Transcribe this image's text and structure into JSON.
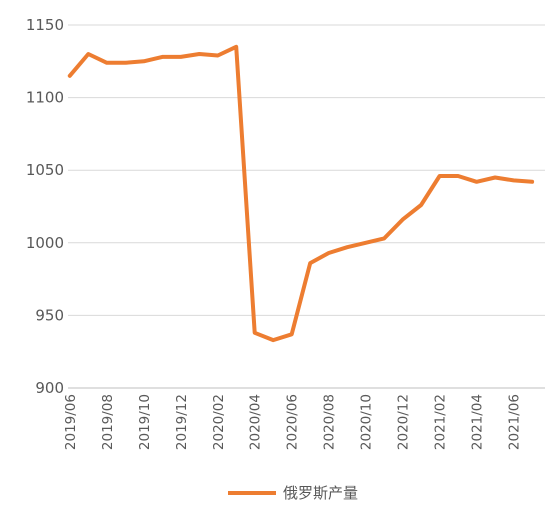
{
  "chart_data": {
    "type": "line",
    "title": "",
    "xlabel": "",
    "ylabel": "",
    "ylim": [
      900,
      1150
    ],
    "yticks": [
      900,
      950,
      1000,
      1050,
      1100,
      1150
    ],
    "grid": "horizontal",
    "legend_position": "bottom",
    "xticklabels": [
      "2019/06",
      "2019/08",
      "2019/10",
      "2019/12",
      "2020/02",
      "2020/04",
      "2020/06",
      "2020/08",
      "2020/10",
      "2020/12",
      "2021/02",
      "2021/04",
      "2021/06"
    ],
    "x": [
      "2019/06",
      "2019/07",
      "2019/08",
      "2019/09",
      "2019/10",
      "2019/11",
      "2019/12",
      "2020/01",
      "2020/02",
      "2020/03",
      "2020/04",
      "2020/05",
      "2020/06",
      "2020/07",
      "2020/08",
      "2020/09",
      "2020/10",
      "2020/11",
      "2020/12",
      "2021/01",
      "2021/02",
      "2021/03",
      "2021/04",
      "2021/05",
      "2021/06",
      "2021/07"
    ],
    "series": [
      {
        "name": "俄罗斯产量",
        "color": "#ED7D31",
        "values": [
          1115,
          1130,
          1124,
          1124,
          1125,
          1128,
          1128,
          1130,
          1129,
          1135,
          938,
          933,
          937,
          986,
          993,
          997,
          1000,
          1003,
          1016,
          1026,
          1046,
          1046,
          1042,
          1045,
          1043,
          1042
        ]
      }
    ]
  }
}
